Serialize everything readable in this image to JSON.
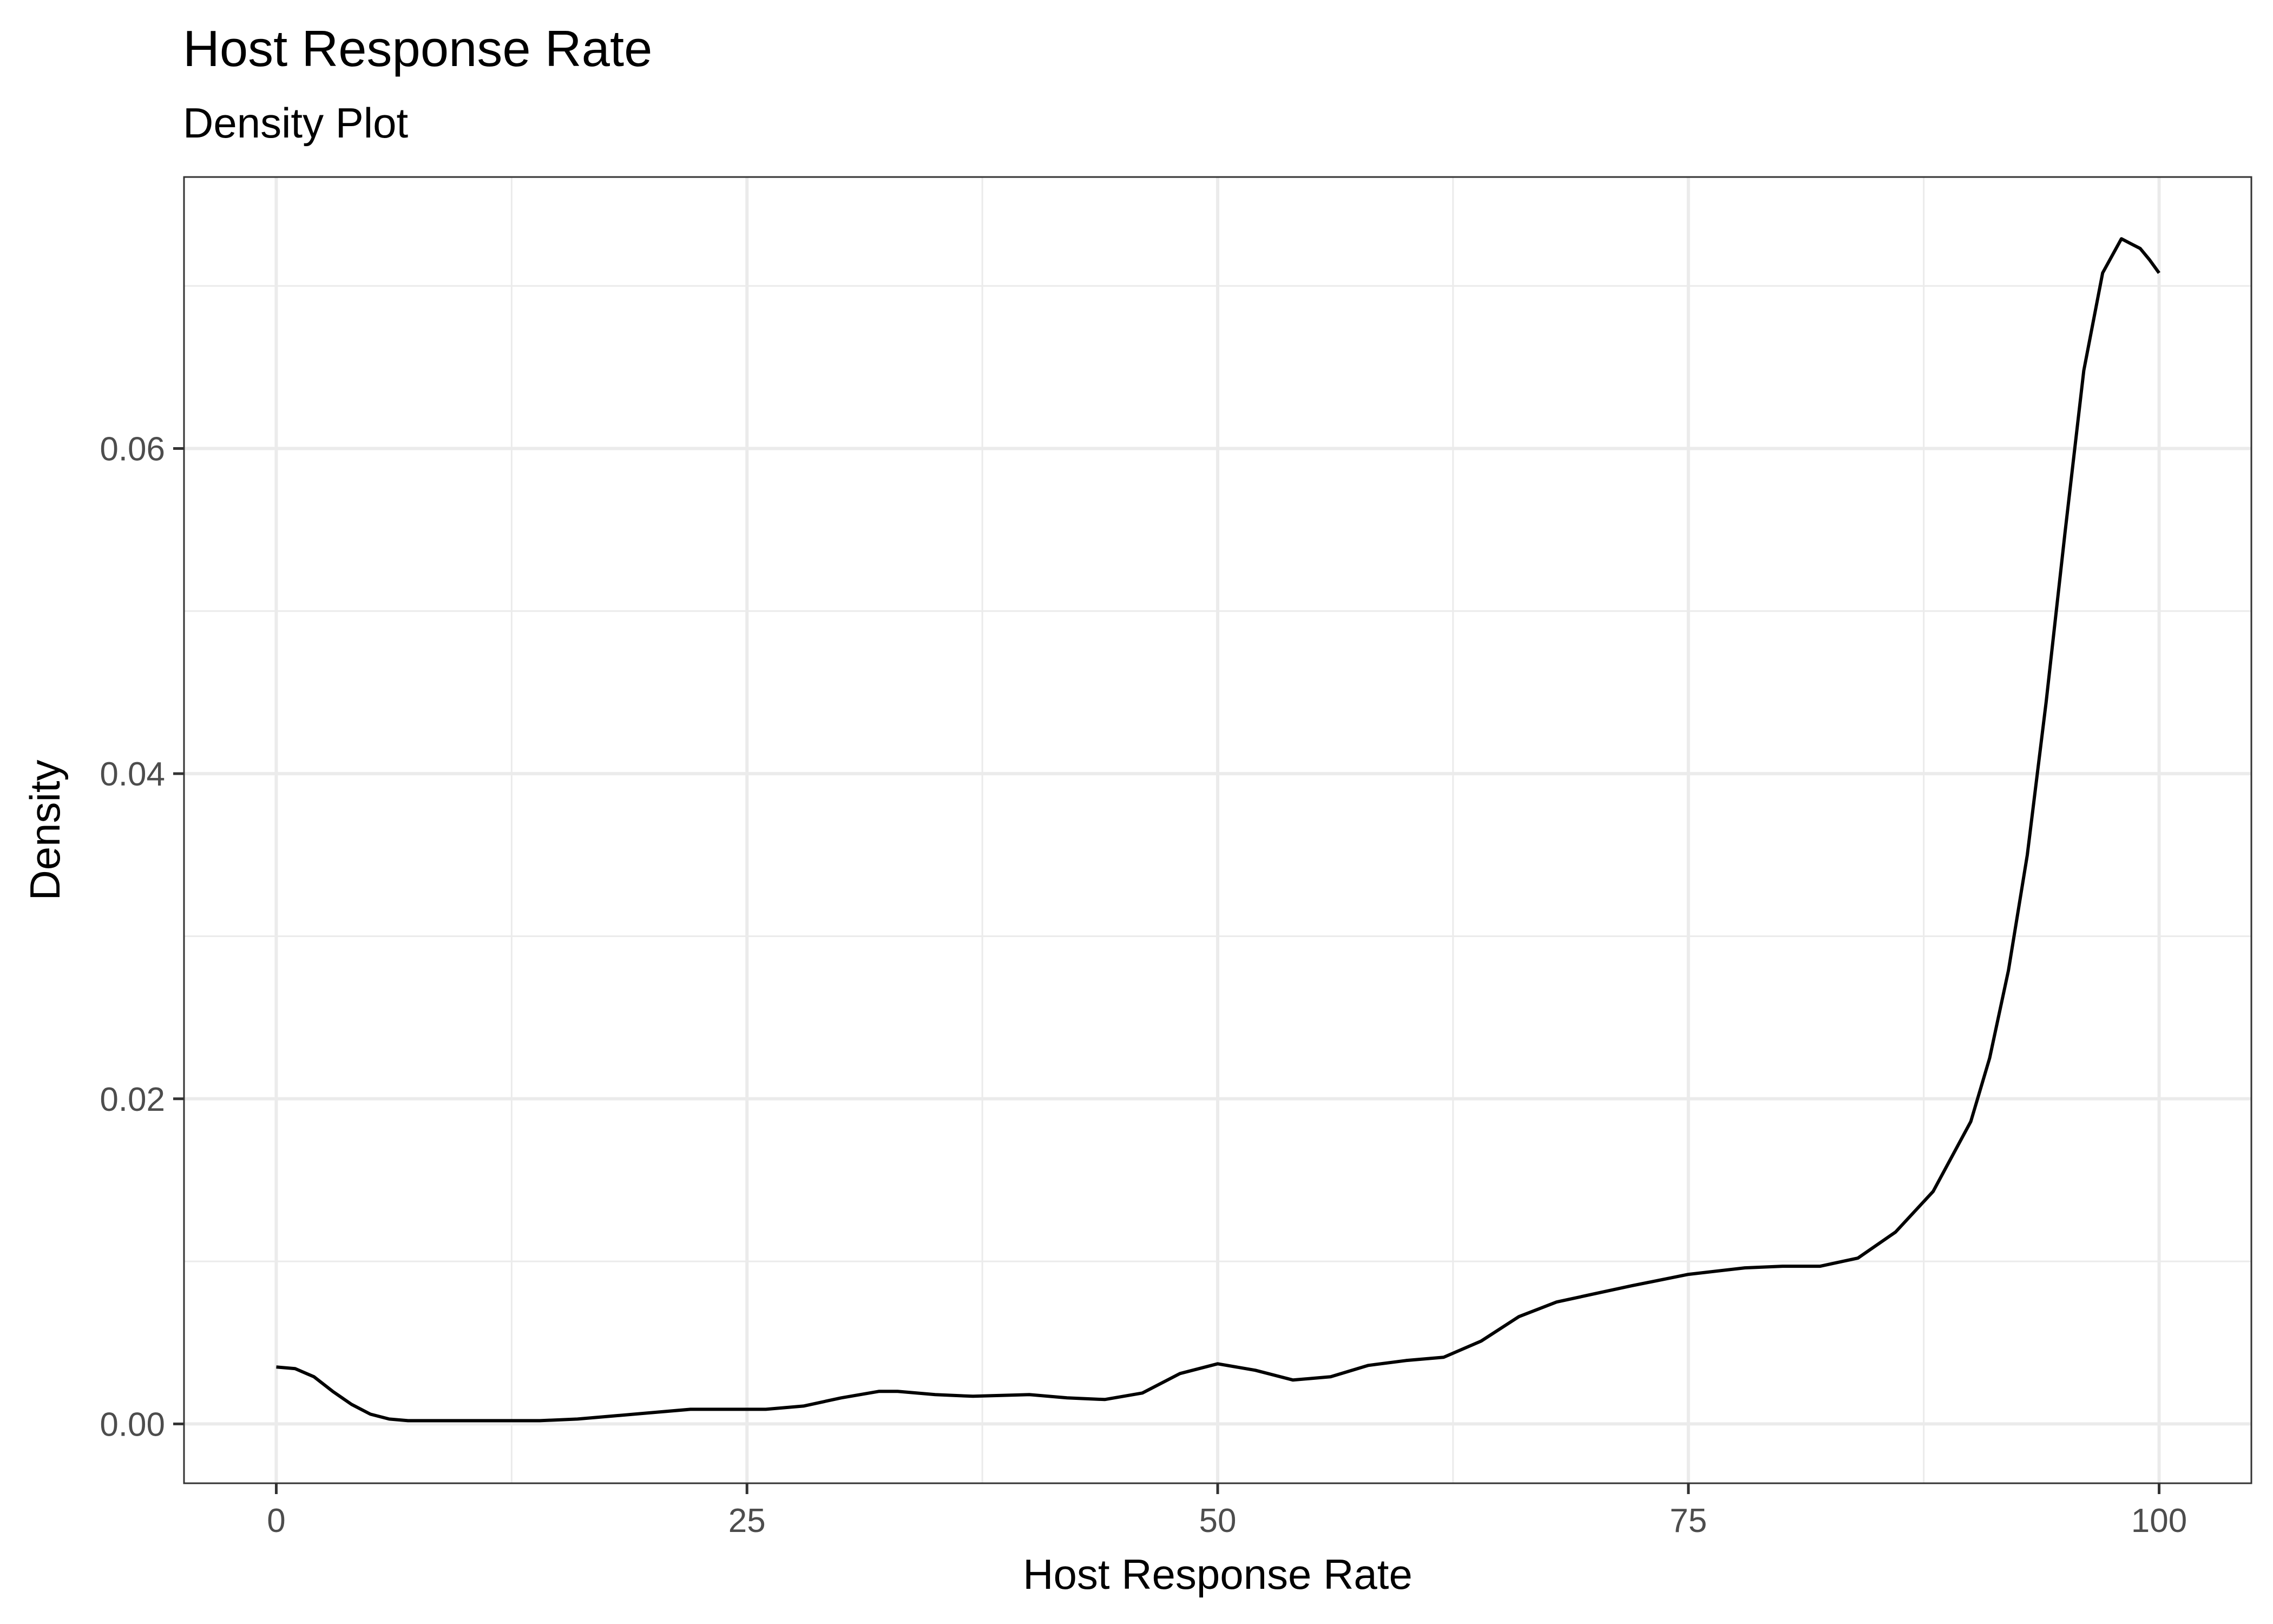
{
  "chart_data": {
    "type": "line",
    "title": "Host Response Rate",
    "subtitle": "Density Plot",
    "xlabel": "Host Response Rate",
    "ylabel": "Density",
    "xlim": [
      -4.9,
      104.9
    ],
    "ylim": [
      -0.00365,
      0.0767
    ],
    "x_ticks": [
      0,
      25,
      50,
      75,
      100
    ],
    "x_tick_labels": [
      "0",
      "25",
      "50",
      "75",
      "100"
    ],
    "y_ticks": [
      0.0,
      0.02,
      0.04,
      0.06
    ],
    "y_tick_labels": [
      "0.00",
      "0.02",
      "0.04",
      "0.06"
    ],
    "grid": true,
    "legend": "none",
    "line_color": "#000000",
    "series": [
      {
        "x": [
          0,
          1,
          2,
          3,
          4,
          5,
          6,
          7,
          8,
          10,
          12,
          14,
          16,
          18,
          20,
          22,
          24,
          26,
          28,
          30,
          32,
          33,
          35,
          37,
          40,
          42,
          44,
          46,
          48,
          50,
          52,
          54,
          56,
          58,
          60,
          62,
          64,
          66,
          68,
          70,
          72,
          75,
          78,
          80,
          82,
          84,
          86,
          88,
          90,
          91,
          92,
          93,
          94,
          95,
          96,
          97,
          98,
          99,
          99.5,
          100
        ],
        "y": [
          0.0035,
          0.0034,
          0.0029,
          0.002,
          0.0012,
          0.0006,
          0.0003,
          0.0002,
          0.0002,
          0.0002,
          0.0002,
          0.0002,
          0.0003,
          0.0005,
          0.0007,
          0.0009,
          0.0009,
          0.0009,
          0.0011,
          0.0016,
          0.002,
          0.002,
          0.0018,
          0.0017,
          0.0018,
          0.0016,
          0.0015,
          0.0019,
          0.0031,
          0.0037,
          0.0033,
          0.0027,
          0.0029,
          0.0036,
          0.0039,
          0.0041,
          0.0051,
          0.0066,
          0.0075,
          0.008,
          0.0085,
          0.0092,
          0.0096,
          0.0097,
          0.0097,
          0.0102,
          0.0118,
          0.0143,
          0.0186,
          0.0225,
          0.0279,
          0.035,
          0.0444,
          0.0548,
          0.0648,
          0.0708,
          0.0729,
          0.0723,
          0.0716,
          0.0708
        ]
      }
    ]
  }
}
